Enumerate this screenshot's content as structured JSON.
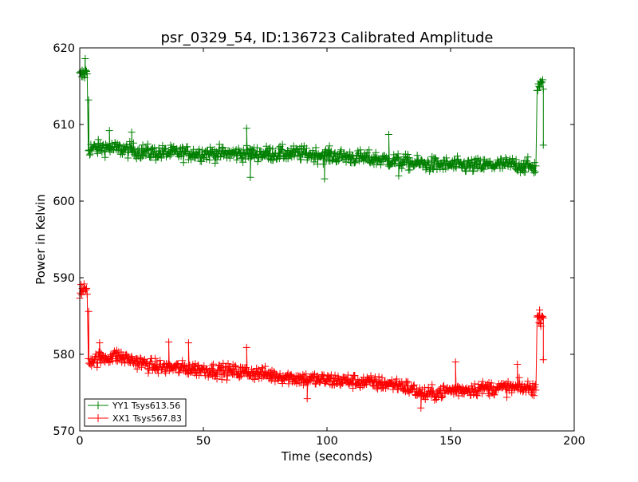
{
  "chart_data": {
    "type": "line",
    "title": "psr_0329_54, ID:136723 Calibrated Amplitude",
    "xlabel": "Time (seconds)",
    "ylabel": "Power in Kelvin",
    "xlim": [
      0,
      200
    ],
    "ylim": [
      570,
      620
    ],
    "xticks": [
      0,
      50,
      100,
      150,
      200
    ],
    "yticks": [
      570,
      580,
      590,
      600,
      610,
      620
    ],
    "xtick_labels": [
      "0",
      "50",
      "100",
      "150",
      "200"
    ],
    "ytick_labels": [
      "570",
      "580",
      "590",
      "600",
      "610",
      "620"
    ],
    "grid": false,
    "legend_position": "lower-left",
    "marker": "+",
    "sample_interval": 0.25,
    "series": [
      {
        "name": "YY1 Tsys613.56",
        "color": "#008000",
        "noise": 0.9,
        "segments": [
          {
            "t_start": 0,
            "t_end": 3.0,
            "trend": [
              [
                0,
                616.3
              ],
              [
                3.0,
                616.8
              ]
            ]
          },
          {
            "t_start": 3.5,
            "t_end": 184.5,
            "trend": [
              [
                3.5,
                606.8
              ],
              [
                10,
                607.0
              ],
              [
                30,
                606.3
              ],
              [
                60,
                606.2
              ],
              [
                90,
                606.2
              ],
              [
                120,
                605.5
              ],
              [
                140,
                604.8
              ],
              [
                160,
                604.6
              ],
              [
                175,
                604.8
              ],
              [
                184.5,
                604.4
              ]
            ]
          },
          {
            "t_start": 185,
            "t_end": 187.5,
            "trend": [
              [
                185,
                614.8
              ],
              [
                187.5,
                615.2
              ]
            ]
          }
        ],
        "outliers": [
          [
            2.2,
            618.6
          ],
          [
            3.6,
            613.2
          ],
          [
            12,
            609.2
          ],
          [
            21,
            609.0
          ],
          [
            67.5,
            609.5
          ],
          [
            69,
            603.1
          ],
          [
            99,
            602.9
          ],
          [
            125,
            608.7
          ],
          [
            129,
            603.3
          ],
          [
            187.5,
            607.3
          ]
        ]
      },
      {
        "name": "XX1 Tsys567.83",
        "color": "#ff0000",
        "noise": 0.85,
        "segments": [
          {
            "t_start": 0,
            "t_end": 3.0,
            "trend": [
              [
                0,
                588.2
              ],
              [
                3.0,
                588.6
              ]
            ]
          },
          {
            "t_start": 3.5,
            "t_end": 184.5,
            "trend": [
              [
                3.5,
                579.2
              ],
              [
                15,
                579.8
              ],
              [
                30,
                578.4
              ],
              [
                50,
                578.0
              ],
              [
                70,
                577.6
              ],
              [
                90,
                576.8
              ],
              [
                110,
                576.5
              ],
              [
                130,
                576.0
              ],
              [
                140,
                574.7
              ],
              [
                150,
                575.3
              ],
              [
                165,
                575.6
              ],
              [
                184.5,
                575.6
              ]
            ]
          },
          {
            "t_start": 185,
            "t_end": 187.5,
            "trend": [
              [
                185,
                584.6
              ],
              [
                187.5,
                585.0
              ]
            ]
          }
        ],
        "outliers": [
          [
            3.6,
            585.6
          ],
          [
            8,
            581.5
          ],
          [
            36,
            581.6
          ],
          [
            44,
            581.5
          ],
          [
            67.5,
            580.9
          ],
          [
            92,
            574.2
          ],
          [
            138,
            573.0
          ],
          [
            152,
            579.0
          ],
          [
            177,
            578.7
          ],
          [
            187.5,
            579.3
          ]
        ]
      }
    ]
  }
}
